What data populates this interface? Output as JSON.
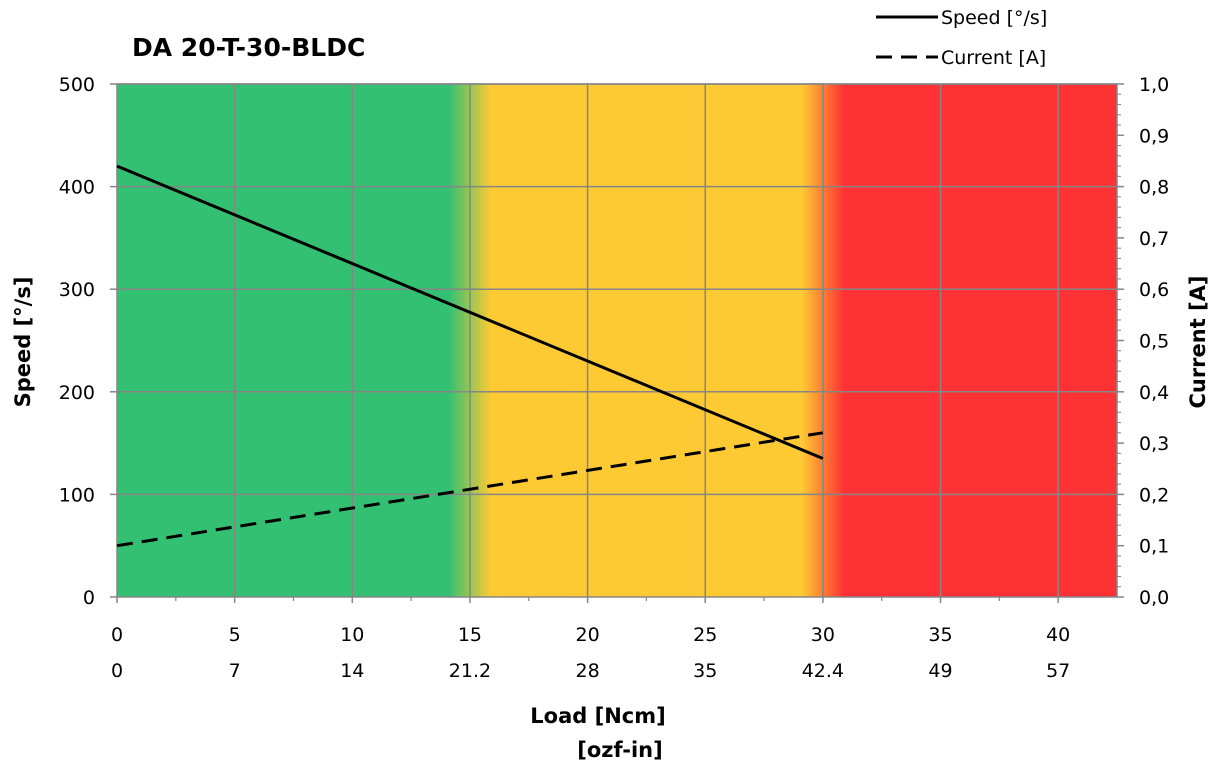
{
  "chart_data": {
    "type": "line",
    "title": "DA 20-T-30-BLDC",
    "xlabel": "Load [Ncm]",
    "xlabel2": "[ozf-in]",
    "ylabel": "Speed   [°/s]",
    "ylabel2": "Current  [A]",
    "xlim": [
      0,
      42.5
    ],
    "ylim": [
      0,
      500
    ],
    "y2lim": [
      0,
      1.0
    ],
    "x_ticks": [
      0,
      5,
      10,
      15,
      20,
      25,
      30,
      35,
      40
    ],
    "x_tick_labels": [
      "0",
      "5",
      "10",
      "15",
      "20",
      "25",
      "30",
      "35",
      "40"
    ],
    "x2_tick_labels": [
      "0",
      "7",
      "14",
      "21.2",
      "28",
      "35",
      "42.4",
      "49",
      "57"
    ],
    "y_ticks": [
      0,
      100,
      200,
      300,
      400,
      500
    ],
    "y_tick_labels": [
      "0",
      "100",
      "200",
      "300",
      "400",
      "500"
    ],
    "y2_ticks": [
      0,
      0.1,
      0.2,
      0.3,
      0.4,
      0.5,
      0.6,
      0.7,
      0.8,
      0.9,
      1.0
    ],
    "y2_tick_labels": [
      "0,0",
      "0,1",
      "0,2",
      "0,3",
      "0,4",
      "0,5",
      "0,6",
      "0,7",
      "0,8",
      "0,9",
      "1,0"
    ],
    "grid": true,
    "legend_position": "top-right",
    "zones": [
      {
        "from": 0,
        "to": 15,
        "color": "#34c073"
      },
      {
        "from": 15,
        "to": 30,
        "color": "#fdca33"
      },
      {
        "from": 30,
        "to": 42.5,
        "color": "#fe3234"
      }
    ],
    "series": [
      {
        "name": "Speed [°/s]",
        "axis": "left",
        "style": "solid",
        "x": [
          0,
          30
        ],
        "y": [
          420,
          135
        ]
      },
      {
        "name": "Current [A]",
        "axis": "right",
        "style": "dashed",
        "x": [
          0,
          30
        ],
        "y": [
          0.1,
          0.32
        ]
      }
    ]
  }
}
